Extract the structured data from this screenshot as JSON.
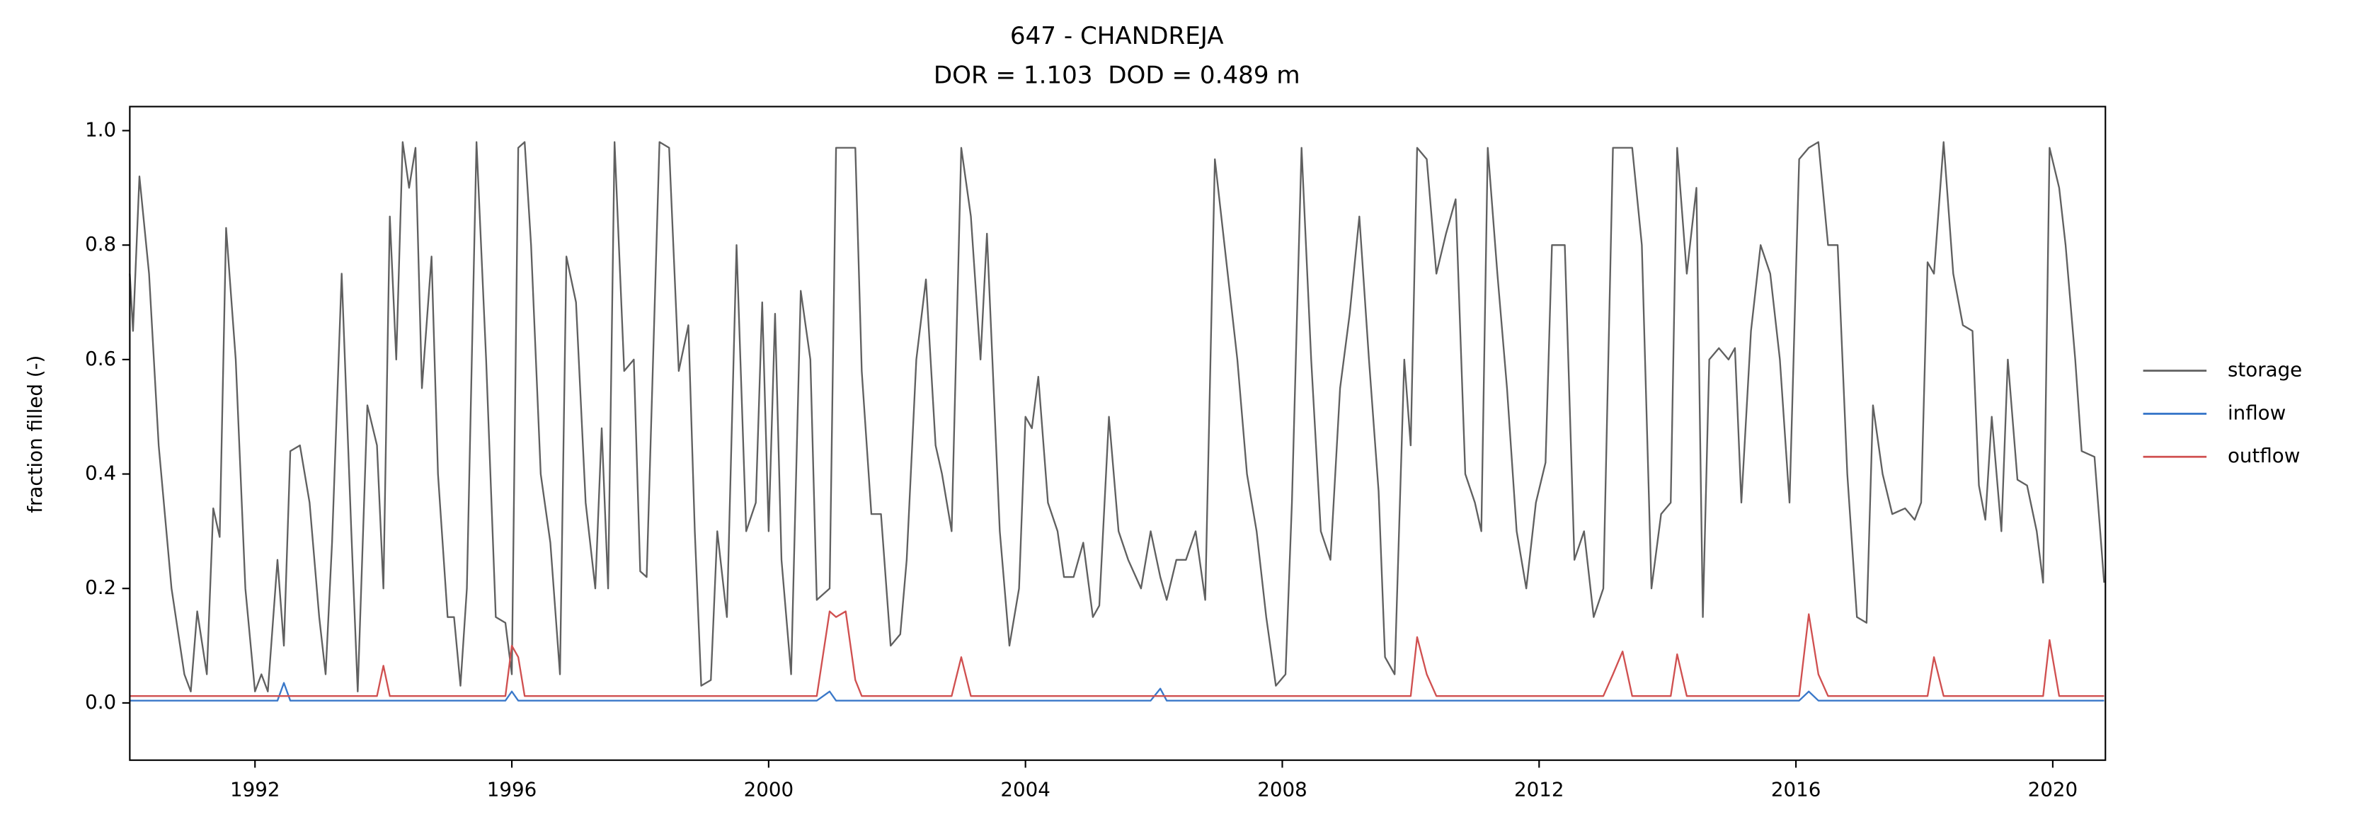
{
  "chart_data": {
    "type": "line",
    "title": "647 - CHANDREJA",
    "subtitle": "DOR = 1.103  DOD = 0.489 m",
    "y_label": "fraction filled (-)",
    "xlim": [
      1990.05,
      2020.82
    ],
    "xticks": [
      1992,
      1996,
      2000,
      2004,
      2008,
      2012,
      2016,
      2020
    ],
    "ylim": [
      -0.1,
      1.042
    ],
    "yticks": [
      {
        "value": 0,
        "label": "0.0"
      },
      0.2,
      0.4,
      0.6,
      0.8,
      {
        "value": 1,
        "label": "1.0"
      }
    ],
    "legend": "right",
    "x": [
      1990.05,
      1990.1,
      1990.2,
      1990.35,
      1990.5,
      1990.7,
      1990.9,
      1991.0,
      1991.1,
      1991.25,
      1991.35,
      1991.45,
      1991.55,
      1991.7,
      1991.85,
      1992.0,
      1992.1,
      1992.2,
      1992.35,
      1992.45,
      1992.55,
      1992.7,
      1992.85,
      1993.0,
      1993.1,
      1993.2,
      1993.35,
      1993.5,
      1993.6,
      1993.75,
      1993.9,
      1994.0,
      1994.1,
      1994.2,
      1994.3,
      1994.4,
      1994.5,
      1994.6,
      1994.75,
      1994.85,
      1995.0,
      1995.1,
      1995.2,
      1995.3,
      1995.45,
      1995.6,
      1995.75,
      1995.9,
      1996.0,
      1996.1,
      1996.2,
      1996.3,
      1996.45,
      1996.6,
      1996.75,
      1996.85,
      1997.0,
      1997.15,
      1997.3,
      1997.4,
      1997.5,
      1997.6,
      1997.75,
      1997.9,
      1998.0,
      1998.1,
      1998.3,
      1998.45,
      1998.6,
      1998.75,
      1998.85,
      1998.95,
      1999.1,
      1999.2,
      1999.35,
      1999.5,
      1999.65,
      1999.8,
      1999.9,
      2000.0,
      2000.1,
      2000.2,
      2000.35,
      2000.5,
      2000.65,
      2000.75,
      2000.95,
      2001.05,
      2001.2,
      2001.35,
      2001.45,
      2001.6,
      2001.75,
      2001.9,
      2002.05,
      2002.15,
      2002.3,
      2002.45,
      2002.6,
      2002.7,
      2002.85,
      2003.0,
      2003.15,
      2003.3,
      2003.4,
      2003.6,
      2003.75,
      2003.9,
      2004.0,
      2004.1,
      2004.2,
      2004.35,
      2004.5,
      2004.6,
      2004.75,
      2004.9,
      2005.05,
      2005.15,
      2005.3,
      2005.45,
      2005.6,
      2005.8,
      2005.95,
      2006.1,
      2006.2,
      2006.35,
      2006.5,
      2006.65,
      2006.8,
      2006.95,
      2007.1,
      2007.3,
      2007.45,
      2007.6,
      2007.75,
      2007.9,
      2008.05,
      2008.15,
      2008.3,
      2008.45,
      2008.6,
      2008.75,
      2008.9,
      2009.05,
      2009.2,
      2009.35,
      2009.5,
      2009.6,
      2009.75,
      2009.9,
      2010.0,
      2010.1,
      2010.25,
      2010.4,
      2010.55,
      2010.7,
      2010.85,
      2011.0,
      2011.1,
      2011.2,
      2011.35,
      2011.5,
      2011.65,
      2011.8,
      2011.95,
      2012.1,
      2012.2,
      2012.4,
      2012.55,
      2012.7,
      2012.85,
      2013.0,
      2013.15,
      2013.3,
      2013.45,
      2013.6,
      2013.75,
      2013.9,
      2014.05,
      2014.15,
      2014.3,
      2014.45,
      2014.55,
      2014.65,
      2014.8,
      2014.95,
      2015.05,
      2015.15,
      2015.3,
      2015.45,
      2015.6,
      2015.75,
      2015.9,
      2016.05,
      2016.2,
      2016.35,
      2016.5,
      2016.65,
      2016.8,
      2016.95,
      2017.1,
      2017.2,
      2017.35,
      2017.5,
      2017.7,
      2017.85,
      2017.95,
      2018.05,
      2018.15,
      2018.3,
      2018.45,
      2018.6,
      2018.75,
      2018.85,
      2018.95,
      2019.05,
      2019.2,
      2019.3,
      2019.45,
      2019.6,
      2019.75,
      2019.85,
      2019.95,
      2020.1,
      2020.2,
      2020.35,
      2020.45,
      2020.65,
      2020.8
    ],
    "series": [
      {
        "name": "storage",
        "color": "#606060",
        "values": [
          0.75,
          0.65,
          0.92,
          0.75,
          0.45,
          0.2,
          0.05,
          0.02,
          0.16,
          0.05,
          0.34,
          0.29,
          0.83,
          0.6,
          0.2,
          0.02,
          0.05,
          0.02,
          0.25,
          0.1,
          0.44,
          0.45,
          0.35,
          0.15,
          0.05,
          0.28,
          0.75,
          0.3,
          0.02,
          0.52,
          0.45,
          0.2,
          0.85,
          0.6,
          0.98,
          0.9,
          0.97,
          0.55,
          0.78,
          0.4,
          0.15,
          0.15,
          0.03,
          0.2,
          0.98,
          0.6,
          0.15,
          0.14,
          0.05,
          0.97,
          0.98,
          0.8,
          0.4,
          0.28,
          0.05,
          0.78,
          0.7,
          0.35,
          0.2,
          0.48,
          0.2,
          0.98,
          0.58,
          0.6,
          0.23,
          0.22,
          0.98,
          0.97,
          0.58,
          0.66,
          0.3,
          0.03,
          0.04,
          0.3,
          0.15,
          0.8,
          0.3,
          0.35,
          0.7,
          0.3,
          0.68,
          0.25,
          0.05,
          0.72,
          0.6,
          0.18,
          0.2,
          0.97,
          0.97,
          0.97,
          0.58,
          0.33,
          0.33,
          0.1,
          0.12,
          0.25,
          0.6,
          0.74,
          0.45,
          0.4,
          0.3,
          0.97,
          0.85,
          0.6,
          0.82,
          0.3,
          0.1,
          0.2,
          0.5,
          0.48,
          0.57,
          0.35,
          0.3,
          0.22,
          0.22,
          0.28,
          0.15,
          0.17,
          0.5,
          0.3,
          0.25,
          0.2,
          0.3,
          0.22,
          0.18,
          0.25,
          0.25,
          0.3,
          0.18,
          0.95,
          0.8,
          0.6,
          0.4,
          0.3,
          0.15,
          0.03,
          0.05,
          0.35,
          0.97,
          0.6,
          0.3,
          0.25,
          0.55,
          0.68,
          0.85,
          0.6,
          0.37,
          0.08,
          0.05,
          0.6,
          0.45,
          0.97,
          0.95,
          0.75,
          0.82,
          0.88,
          0.4,
          0.35,
          0.3,
          0.97,
          0.75,
          0.55,
          0.3,
          0.2,
          0.35,
          0.42,
          0.8,
          0.8,
          0.25,
          0.3,
          0.15,
          0.2,
          0.97,
          0.97,
          0.97,
          0.8,
          0.2,
          0.33,
          0.35,
          0.97,
          0.75,
          0.9,
          0.15,
          0.6,
          0.62,
          0.6,
          0.62,
          0.35,
          0.65,
          0.8,
          0.75,
          0.6,
          0.35,
          0.95,
          0.97,
          0.98,
          0.8,
          0.8,
          0.4,
          0.15,
          0.14,
          0.52,
          0.4,
          0.33,
          0.34,
          0.32,
          0.35,
          0.77,
          0.75,
          0.98,
          0.75,
          0.66,
          0.65,
          0.38,
          0.32,
          0.5,
          0.3,
          0.6,
          0.39,
          0.38,
          0.3,
          0.21,
          0.97,
          0.9,
          0.8,
          0.6,
          0.44,
          0.43,
          0.21
        ]
      },
      {
        "name": "inflow",
        "color": "#3a78c9",
        "values": [
          0.004,
          0.004,
          0.004,
          0.004,
          0.004,
          0.004,
          0.004,
          0.004,
          0.004,
          0.004,
          0.004,
          0.004,
          0.004,
          0.004,
          0.004,
          0.004,
          0.004,
          0.004,
          0.004,
          0.035,
          0.004,
          0.004,
          0.004,
          0.004,
          0.004,
          0.004,
          0.004,
          0.004,
          0.004,
          0.004,
          0.004,
          0.004,
          0.004,
          0.004,
          0.004,
          0.004,
          0.004,
          0.004,
          0.004,
          0.004,
          0.004,
          0.004,
          0.004,
          0.004,
          0.004,
          0.004,
          0.004,
          0.004,
          0.02,
          0.004,
          0.004,
          0.004,
          0.004,
          0.004,
          0.004,
          0.004,
          0.004,
          0.004,
          0.004,
          0.004,
          0.004,
          0.004,
          0.004,
          0.004,
          0.004,
          0.004,
          0.004,
          0.004,
          0.004,
          0.004,
          0.004,
          0.004,
          0.004,
          0.004,
          0.004,
          0.004,
          0.004,
          0.004,
          0.004,
          0.004,
          0.004,
          0.004,
          0.004,
          0.004,
          0.004,
          0.004,
          0.02,
          0.004,
          0.004,
          0.004,
          0.004,
          0.004,
          0.004,
          0.004,
          0.004,
          0.004,
          0.004,
          0.004,
          0.004,
          0.004,
          0.004,
          0.004,
          0.004,
          0.004,
          0.004,
          0.004,
          0.004,
          0.004,
          0.004,
          0.004,
          0.004,
          0.004,
          0.004,
          0.004,
          0.004,
          0.004,
          0.004,
          0.004,
          0.004,
          0.004,
          0.004,
          0.004,
          0.004,
          0.025,
          0.004,
          0.004,
          0.004,
          0.004,
          0.004,
          0.004,
          0.004,
          0.004,
          0.004,
          0.004,
          0.004,
          0.004,
          0.004,
          0.004,
          0.004,
          0.004,
          0.004,
          0.004,
          0.004,
          0.004,
          0.004,
          0.004,
          0.004,
          0.004,
          0.004,
          0.004,
          0.004,
          0.004,
          0.004,
          0.004,
          0.004,
          0.004,
          0.004,
          0.004,
          0.004,
          0.004,
          0.004,
          0.004,
          0.004,
          0.004,
          0.004,
          0.004,
          0.004,
          0.004,
          0.004,
          0.004,
          0.004,
          0.004,
          0.004,
          0.004,
          0.004,
          0.004,
          0.004,
          0.004,
          0.004,
          0.004,
          0.004,
          0.004,
          0.004,
          0.004,
          0.004,
          0.004,
          0.004,
          0.004,
          0.004,
          0.004,
          0.004,
          0.004,
          0.004,
          0.004,
          0.02,
          0.004,
          0.004,
          0.004,
          0.004,
          0.004,
          0.004,
          0.004,
          0.004,
          0.004,
          0.004,
          0.004,
          0.004,
          0.004,
          0.004,
          0.004,
          0.004,
          0.004,
          0.004,
          0.004,
          0.004,
          0.004,
          0.004,
          0.004,
          0.004,
          0.004,
          0.004,
          0.004,
          0.004,
          0.004,
          0.004,
          0.004,
          0.004,
          0.004,
          0.004
        ]
      },
      {
        "name": "outflow",
        "color": "#d05050",
        "values": [
          0.012,
          0.012,
          0.012,
          0.012,
          0.012,
          0.012,
          0.012,
          0.012,
          0.012,
          0.012,
          0.012,
          0.012,
          0.012,
          0.012,
          0.012,
          0.012,
          0.012,
          0.012,
          0.012,
          0.012,
          0.012,
          0.012,
          0.012,
          0.012,
          0.012,
          0.012,
          0.012,
          0.012,
          0.012,
          0.012,
          0.012,
          0.065,
          0.012,
          0.012,
          0.012,
          0.012,
          0.012,
          0.012,
          0.012,
          0.012,
          0.012,
          0.012,
          0.012,
          0.012,
          0.012,
          0.012,
          0.012,
          0.012,
          0.1,
          0.08,
          0.012,
          0.012,
          0.012,
          0.012,
          0.012,
          0.012,
          0.012,
          0.012,
          0.012,
          0.012,
          0.012,
          0.012,
          0.012,
          0.012,
          0.012,
          0.012,
          0.012,
          0.012,
          0.012,
          0.012,
          0.012,
          0.012,
          0.012,
          0.012,
          0.012,
          0.012,
          0.012,
          0.012,
          0.012,
          0.012,
          0.012,
          0.012,
          0.012,
          0.012,
          0.012,
          0.012,
          0.16,
          0.15,
          0.16,
          0.04,
          0.012,
          0.012,
          0.012,
          0.012,
          0.012,
          0.012,
          0.012,
          0.012,
          0.012,
          0.012,
          0.012,
          0.08,
          0.012,
          0.012,
          0.012,
          0.012,
          0.012,
          0.012,
          0.012,
          0.012,
          0.012,
          0.012,
          0.012,
          0.012,
          0.012,
          0.012,
          0.012,
          0.012,
          0.012,
          0.012,
          0.012,
          0.012,
          0.012,
          0.012,
          0.012,
          0.012,
          0.012,
          0.012,
          0.012,
          0.012,
          0.012,
          0.012,
          0.012,
          0.012,
          0.012,
          0.012,
          0.012,
          0.012,
          0.012,
          0.012,
          0.012,
          0.012,
          0.012,
          0.012,
          0.012,
          0.012,
          0.012,
          0.012,
          0.012,
          0.012,
          0.012,
          0.115,
          0.05,
          0.012,
          0.012,
          0.012,
          0.012,
          0.012,
          0.012,
          0.012,
          0.012,
          0.012,
          0.012,
          0.012,
          0.012,
          0.012,
          0.012,
          0.012,
          0.012,
          0.012,
          0.012,
          0.012,
          0.05,
          0.09,
          0.012,
          0.012,
          0.012,
          0.012,
          0.012,
          0.085,
          0.012,
          0.012,
          0.012,
          0.012,
          0.012,
          0.012,
          0.012,
          0.012,
          0.012,
          0.012,
          0.012,
          0.012,
          0.012,
          0.012,
          0.155,
          0.05,
          0.012,
          0.012,
          0.012,
          0.012,
          0.012,
          0.012,
          0.012,
          0.012,
          0.012,
          0.012,
          0.012,
          0.012,
          0.08,
          0.012,
          0.012,
          0.012,
          0.012,
          0.012,
          0.012,
          0.012,
          0.012,
          0.012,
          0.012,
          0.012,
          0.012,
          0.012,
          0.11,
          0.012,
          0.012,
          0.012,
          0.012,
          0.012,
          0.012
        ]
      }
    ]
  }
}
